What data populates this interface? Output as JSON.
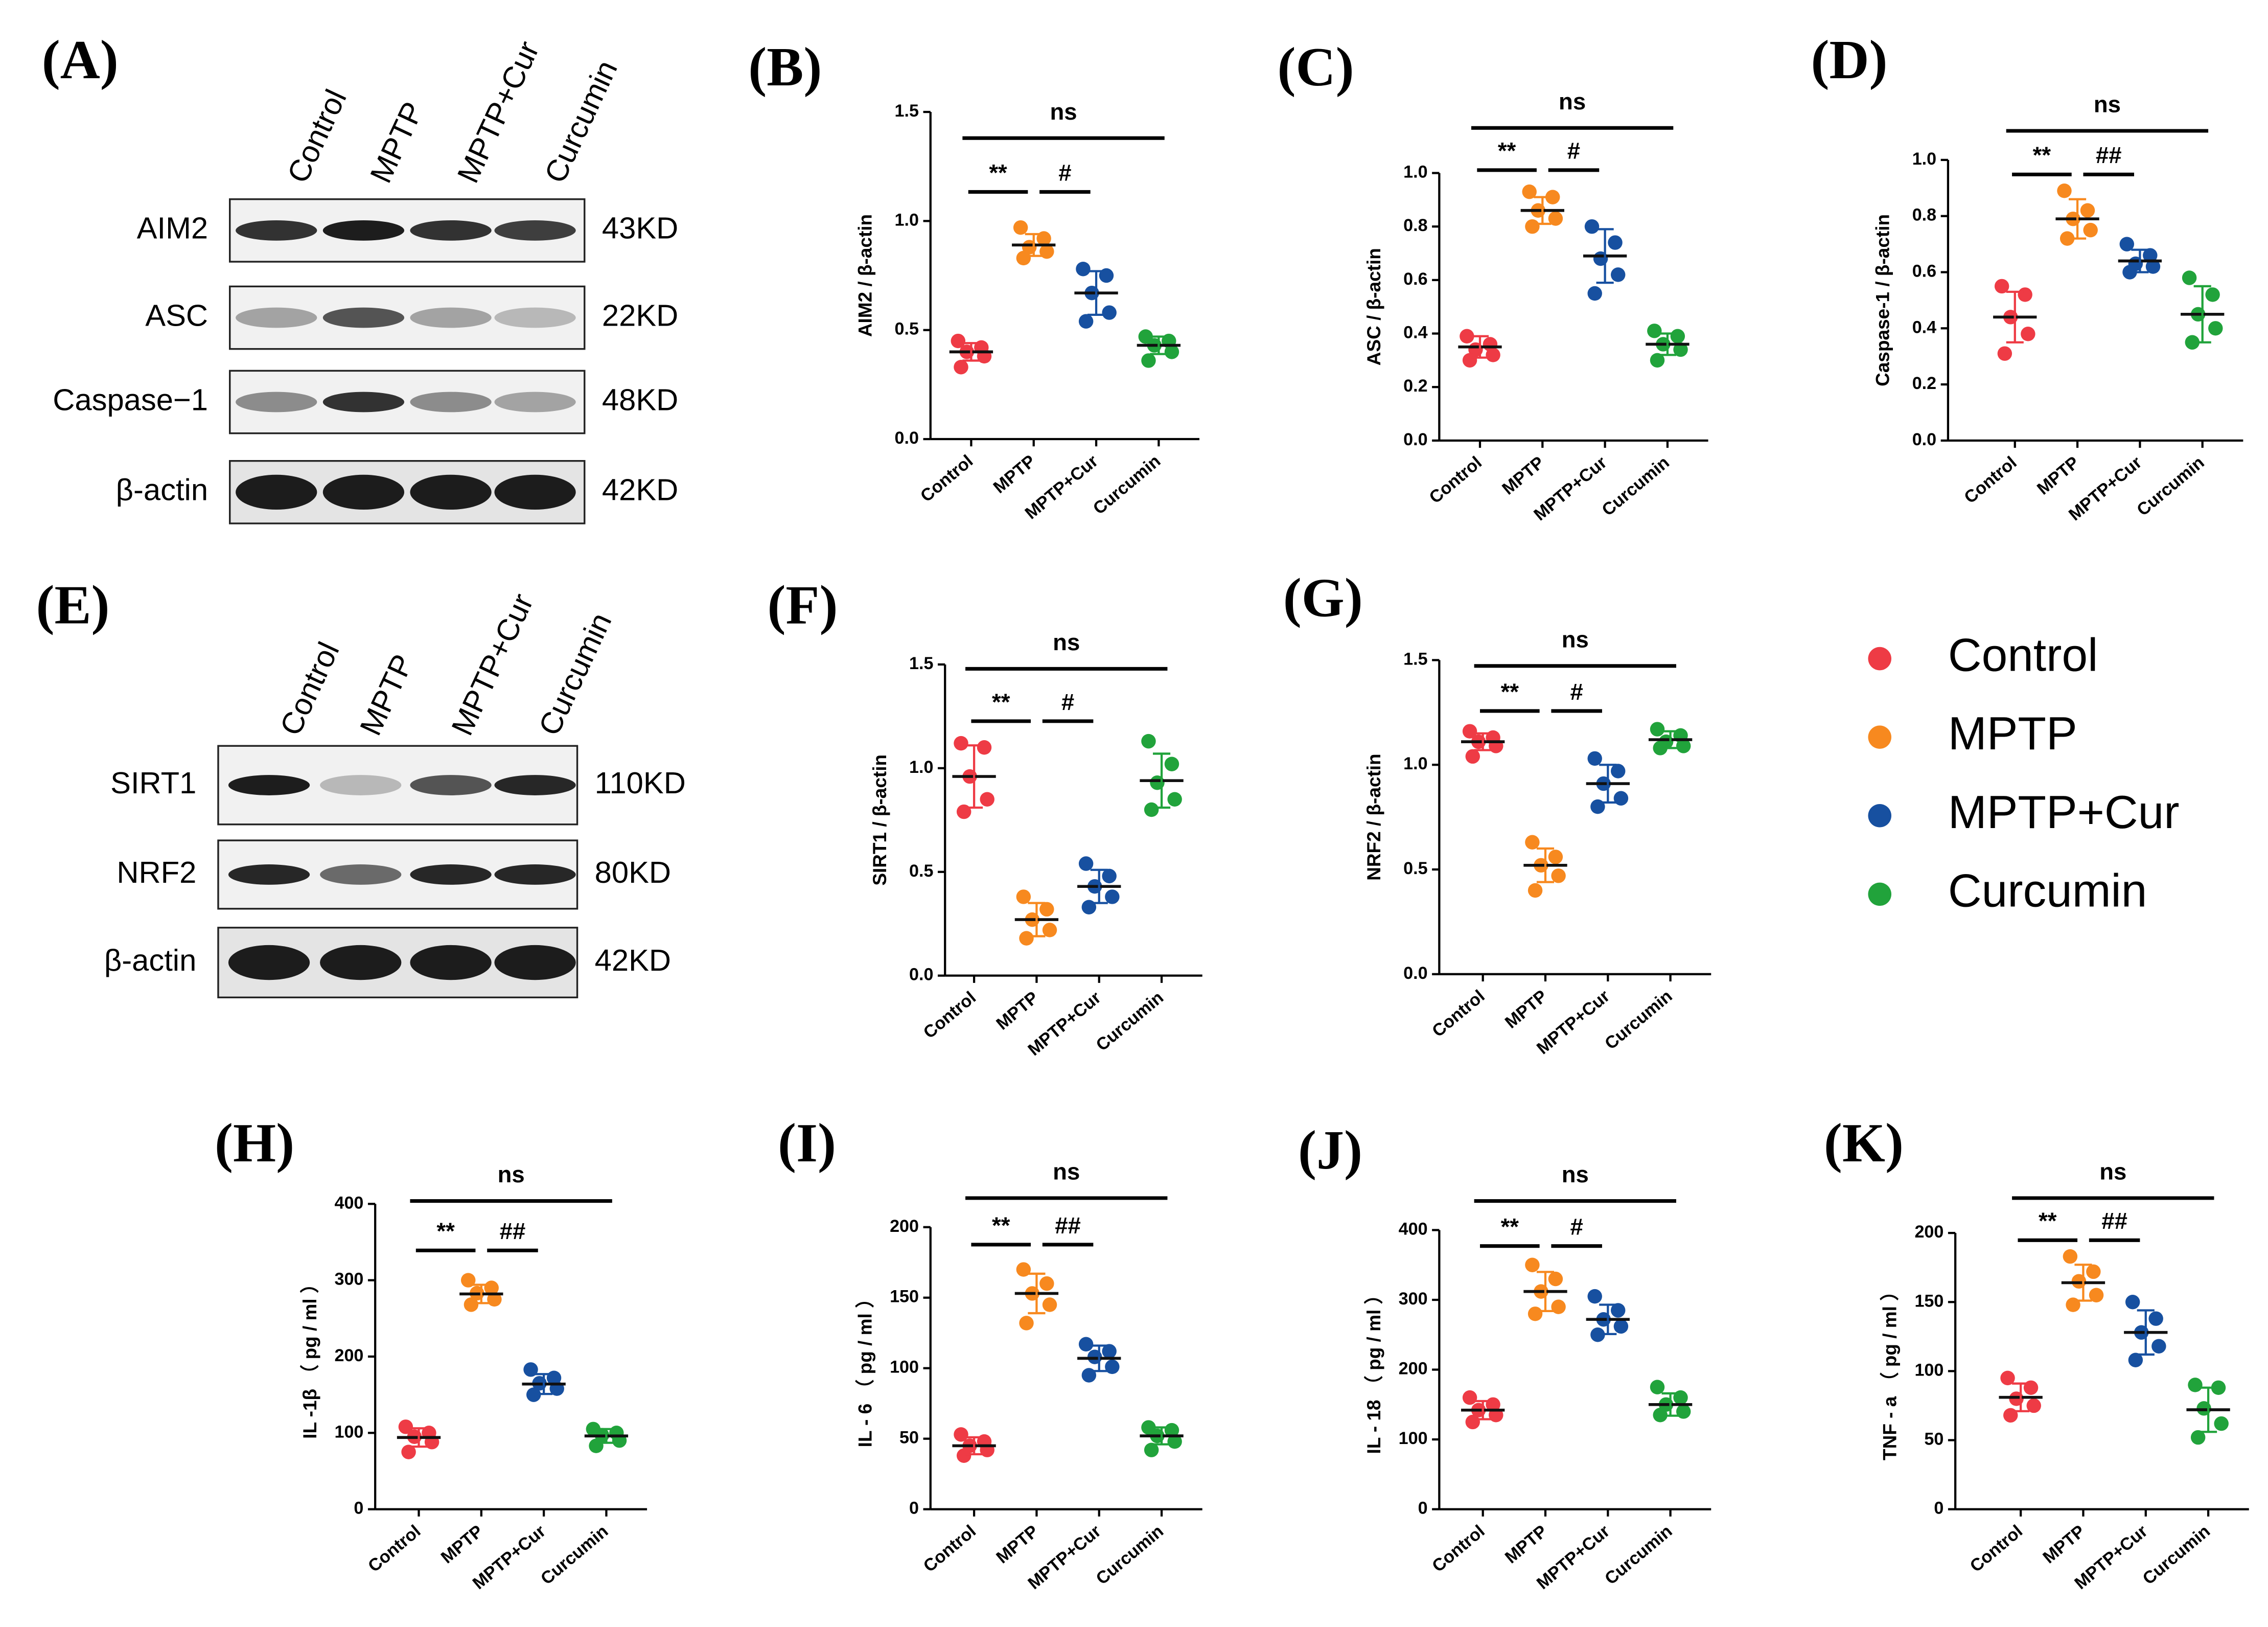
{
  "blots": [
    {
      "letter": "(A)",
      "lanes": [
        "Control",
        "MPTP",
        "MPTP+Cur",
        "Curcumin"
      ],
      "rows": [
        {
          "protein": "AIM2",
          "size": "43KD"
        },
        {
          "protein": "ASC",
          "size": "22KD"
        },
        {
          "protein": "Caspase−1",
          "size": "48KD"
        },
        {
          "protein": "β-actin",
          "size": "42KD"
        }
      ]
    },
    {
      "letter": "(E)",
      "lanes": [
        "Control",
        "MPTP",
        "MPTP+Cur",
        "Curcumin"
      ],
      "rows": [
        {
          "protein": "SIRT1",
          "size": "110KD"
        },
        {
          "protein": "NRF2",
          "size": "80KD"
        },
        {
          "protein": "β-actin",
          "size": "42KD"
        }
      ]
    }
  ],
  "legend": {
    "names": [
      "Control",
      "MPTP",
      "MPTP+Cur",
      "Curcumin"
    ],
    "colors": [
      "#ee3b45",
      "#f7891f",
      "#1750a0",
      "#21a33b"
    ]
  },
  "chart_data": [
    {
      "type": "dot",
      "letter": "(B)",
      "ylabel": "AIM2 /  β-actin",
      "categories": [
        "Control",
        "MPTP",
        "MPTP+Cur",
        "Curcumin"
      ],
      "ylim": [
        0,
        1.5
      ],
      "yticks": [
        {
          "value": 0,
          "label": "0.0"
        },
        0.5,
        {
          "value": 1,
          "label": "1.0"
        },
        1.5
      ],
      "points": [
        [
          0.45,
          0.42,
          0.4,
          0.38,
          0.33
        ],
        [
          0.97,
          0.92,
          0.88,
          0.86,
          0.83
        ],
        [
          0.78,
          0.75,
          0.67,
          0.58,
          0.54
        ],
        [
          0.47,
          0.45,
          0.43,
          0.4,
          0.36
        ]
      ],
      "means": [
        0.4,
        0.89,
        0.67,
        0.43
      ],
      "sds": [
        0.04,
        0.05,
        0.1,
        0.04
      ],
      "annotations": [
        {
          "text": "**",
          "from": 0,
          "to": 1
        },
        {
          "text": "#",
          "from": 1,
          "to": 2
        },
        {
          "text": "ns",
          "from": 0,
          "to": 3
        }
      ]
    },
    {
      "type": "dot",
      "letter": "(C)",
      "ylabel": "ASC  /  β-actin",
      "categories": [
        "Control",
        "MPTP",
        "MPTP+Cur",
        "Curcumin"
      ],
      "ylim": [
        0,
        1
      ],
      "yticks": [
        {
          "value": 0,
          "label": "0.0"
        },
        0.2,
        0.4,
        0.6,
        0.8,
        {
          "value": 1,
          "label": "1.0"
        }
      ],
      "points": [
        [
          0.39,
          0.36,
          0.34,
          0.32,
          0.3
        ],
        [
          0.93,
          0.91,
          0.86,
          0.83,
          0.8
        ],
        [
          0.8,
          0.74,
          0.68,
          0.62,
          0.55
        ],
        [
          0.41,
          0.39,
          0.36,
          0.34,
          0.3
        ]
      ],
      "means": [
        0.35,
        0.86,
        0.69,
        0.36
      ],
      "sds": [
        0.04,
        0.05,
        0.1,
        0.04
      ],
      "annotations": [
        {
          "text": "**",
          "from": 0,
          "to": 1
        },
        {
          "text": "#",
          "from": 1,
          "to": 2
        },
        {
          "text": "ns",
          "from": 0,
          "to": 3
        }
      ]
    },
    {
      "type": "dot",
      "letter": "(D)",
      "ylabel": "Caspase-1  /  β-actin",
      "categories": [
        "Control",
        "MPTP",
        "MPTP+Cur",
        "Curcumin"
      ],
      "ylim": [
        0,
        1
      ],
      "yticks": [
        {
          "value": 0,
          "label": "0.0"
        },
        0.2,
        0.4,
        0.6,
        0.8,
        {
          "value": 1,
          "label": "1.0"
        }
      ],
      "points": [
        [
          0.55,
          0.52,
          0.44,
          0.38,
          0.31
        ],
        [
          0.89,
          0.82,
          0.79,
          0.75,
          0.72
        ],
        [
          0.7,
          0.66,
          0.63,
          0.62,
          0.6
        ],
        [
          0.58,
          0.52,
          0.45,
          0.4,
          0.35
        ]
      ],
      "means": [
        0.44,
        0.79,
        0.64,
        0.45
      ],
      "sds": [
        0.09,
        0.07,
        0.04,
        0.1
      ],
      "annotations": [
        {
          "text": "**",
          "from": 0,
          "to": 1
        },
        {
          "text": "##",
          "from": 1,
          "to": 2
        },
        {
          "text": "ns",
          "from": 0,
          "to": 3
        }
      ]
    },
    {
      "type": "dot",
      "letter": "(F)",
      "ylabel": "SIRT1 /  β-actin",
      "categories": [
        "Control",
        "MPTP",
        "MPTP+Cur",
        "Curcumin"
      ],
      "ylim": [
        0,
        1.5
      ],
      "yticks": [
        {
          "value": 0,
          "label": "0.0"
        },
        0.5,
        {
          "value": 1,
          "label": "1.0"
        },
        1.5
      ],
      "points": [
        [
          1.12,
          1.1,
          0.96,
          0.85,
          0.79
        ],
        [
          0.38,
          0.32,
          0.27,
          0.22,
          0.18
        ],
        [
          0.54,
          0.48,
          0.43,
          0.38,
          0.33
        ],
        [
          1.13,
          1.02,
          0.93,
          0.85,
          0.8
        ]
      ],
      "means": [
        0.96,
        0.27,
        0.43,
        0.94
      ],
      "sds": [
        0.15,
        0.08,
        0.08,
        0.13
      ],
      "annotations": [
        {
          "text": "**",
          "from": 0,
          "to": 1
        },
        {
          "text": "#",
          "from": 1,
          "to": 2
        },
        {
          "text": "ns",
          "from": 0,
          "to": 3
        }
      ]
    },
    {
      "type": "dot",
      "letter": "(G)",
      "ylabel": "NRF2  /  β-actin",
      "categories": [
        "Control",
        "MPTP",
        "MPTP+Cur",
        "Curcumin"
      ],
      "ylim": [
        0,
        1.5
      ],
      "yticks": [
        {
          "value": 0,
          "label": "0.0"
        },
        0.5,
        {
          "value": 1,
          "label": "1.0"
        },
        1.5
      ],
      "points": [
        [
          1.16,
          1.13,
          1.11,
          1.09,
          1.04
        ],
        [
          0.63,
          0.56,
          0.52,
          0.47,
          0.4
        ],
        [
          1.03,
          0.97,
          0.91,
          0.84,
          0.8
        ],
        [
          1.17,
          1.14,
          1.11,
          1.09,
          1.08
        ]
      ],
      "means": [
        1.11,
        0.52,
        0.91,
        1.12
      ],
      "sds": [
        0.04,
        0.08,
        0.09,
        0.04
      ],
      "annotations": [
        {
          "text": "**",
          "from": 0,
          "to": 1
        },
        {
          "text": "#",
          "from": 1,
          "to": 2
        },
        {
          "text": "ns",
          "from": 0,
          "to": 3
        }
      ]
    },
    {
      "type": "dot",
      "letter": "(H)",
      "ylabel": "IL -1β （ pg / ml ）",
      "categories": [
        "Control",
        "MPTP",
        "MPTP+Cur",
        "Curcumin"
      ],
      "ylim": [
        0,
        400
      ],
      "yticks": [
        0,
        100,
        200,
        300,
        400
      ],
      "points": [
        [
          108,
          100,
          95,
          88,
          75
        ],
        [
          300,
          290,
          283,
          275,
          268
        ],
        [
          183,
          172,
          165,
          158,
          150
        ],
        [
          105,
          100,
          97,
          90,
          83
        ]
      ],
      "means": [
        94,
        282,
        164,
        96
      ],
      "sds": [
        12,
        12,
        13,
        9
      ],
      "annotations": [
        {
          "text": "**",
          "from": 0,
          "to": 1
        },
        {
          "text": "##",
          "from": 1,
          "to": 2
        },
        {
          "text": "ns",
          "from": 0,
          "to": 3
        }
      ]
    },
    {
      "type": "dot",
      "letter": "(I)",
      "ylabel": "IL - 6 （ pg / ml ）",
      "categories": [
        "Control",
        "MPTP",
        "MPTP+Cur",
        "Curcumin"
      ],
      "ylim": [
        0,
        200
      ],
      "yticks": [
        0,
        50,
        100,
        150,
        200
      ],
      "points": [
        [
          53,
          48,
          45,
          42,
          38
        ],
        [
          170,
          160,
          153,
          145,
          132
        ],
        [
          117,
          112,
          108,
          101,
          95
        ],
        [
          58,
          56,
          52,
          48,
          42
        ]
      ],
      "means": [
        45,
        153,
        107,
        52
      ],
      "sds": [
        6,
        14,
        9,
        6
      ],
      "annotations": [
        {
          "text": "**",
          "from": 0,
          "to": 1
        },
        {
          "text": "##",
          "from": 1,
          "to": 2
        },
        {
          "text": "ns",
          "from": 0,
          "to": 3
        }
      ]
    },
    {
      "type": "dot",
      "letter": "(J)",
      "ylabel": "IL - 18 （ pg / ml ）",
      "categories": [
        "Control",
        "MPTP",
        "MPTP+Cur",
        "Curcumin"
      ],
      "ylim": [
        0,
        400
      ],
      "yticks": [
        0,
        100,
        200,
        300,
        400
      ],
      "points": [
        [
          160,
          150,
          142,
          135,
          125
        ],
        [
          350,
          330,
          312,
          290,
          280
        ],
        [
          305,
          285,
          272,
          262,
          250
        ],
        [
          175,
          160,
          150,
          140,
          135
        ]
      ],
      "means": [
        142,
        312,
        272,
        150
      ],
      "sds": [
        13,
        28,
        21,
        16
      ],
      "annotations": [
        {
          "text": "**",
          "from": 0,
          "to": 1
        },
        {
          "text": "#",
          "from": 1,
          "to": 2
        },
        {
          "text": "ns",
          "from": 0,
          "to": 3
        }
      ]
    },
    {
      "type": "dot",
      "letter": "(K)",
      "ylabel": "TNF - a （ pg / ml ）",
      "categories": [
        "Control",
        "MPTP",
        "MPTP+Cur",
        "Curcumin"
      ],
      "ylim": [
        0,
        200
      ],
      "yticks": [
        0,
        50,
        100,
        150,
        200
      ],
      "points": [
        [
          95,
          88,
          80,
          75,
          68
        ],
        [
          183,
          172,
          165,
          155,
          148
        ],
        [
          150,
          138,
          128,
          118,
          108
        ],
        [
          90,
          88,
          73,
          62,
          52
        ]
      ],
      "means": [
        81,
        164,
        128,
        72
      ],
      "sds": [
        10,
        13,
        16,
        16
      ],
      "annotations": [
        {
          "text": "**",
          "from": 0,
          "to": 1
        },
        {
          "text": "##",
          "from": 1,
          "to": 2
        },
        {
          "text": "ns",
          "from": 0,
          "to": 3
        }
      ]
    }
  ]
}
